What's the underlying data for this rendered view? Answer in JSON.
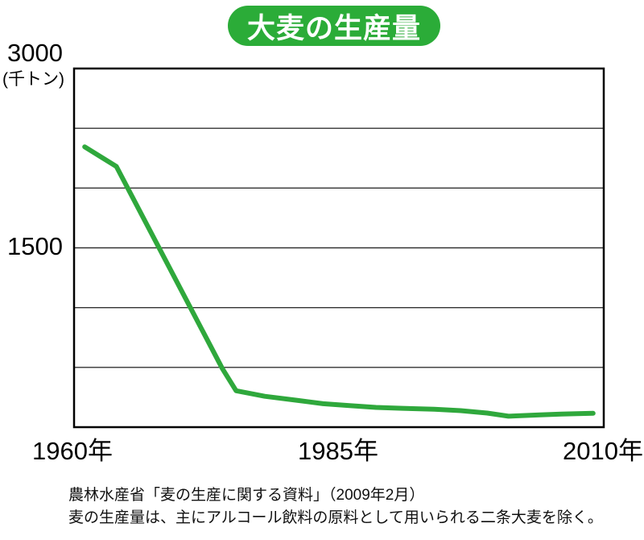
{
  "title": "大麦の生産量",
  "colors": {
    "accent_green": "#2bac38",
    "line_green": "#2fa83c",
    "grid": "#333333",
    "frame": "#000000"
  },
  "y_axis": {
    "top_label": "3000",
    "unit_label": "(千トン)",
    "mid_label": "1500"
  },
  "x_axis": {
    "labels": [
      "1960年",
      "1985年",
      "2010年"
    ]
  },
  "source_note": "農林水産省「麦の生産に関する資料」（2009年2月）",
  "footnote": "麦の生産量は、主にアルコール飲料の原料として用いられる二条大麦を除く。",
  "chart_data": {
    "type": "line",
    "title": "大麦の生産量",
    "ylabel": "千トン",
    "ylim": [
      0,
      3000
    ],
    "xlim": [
      1960,
      2010
    ],
    "grid_interval": 500,
    "grid": true,
    "legend": "none",
    "x": [
      1961,
      1964,
      1974,
      1975.3,
      1978,
      1981,
      1983.5,
      1986,
      1988.5,
      1991,
      1994,
      1996.5,
      1999,
      2001,
      2004,
      2006,
      2009
    ],
    "series": [
      {
        "name": "大麦の生産量",
        "values": [
          2345,
          2180,
          490,
          305,
          258,
          225,
          196,
          180,
          165,
          158,
          150,
          138,
          118,
          92,
          103,
          110,
          116
        ]
      }
    ]
  }
}
